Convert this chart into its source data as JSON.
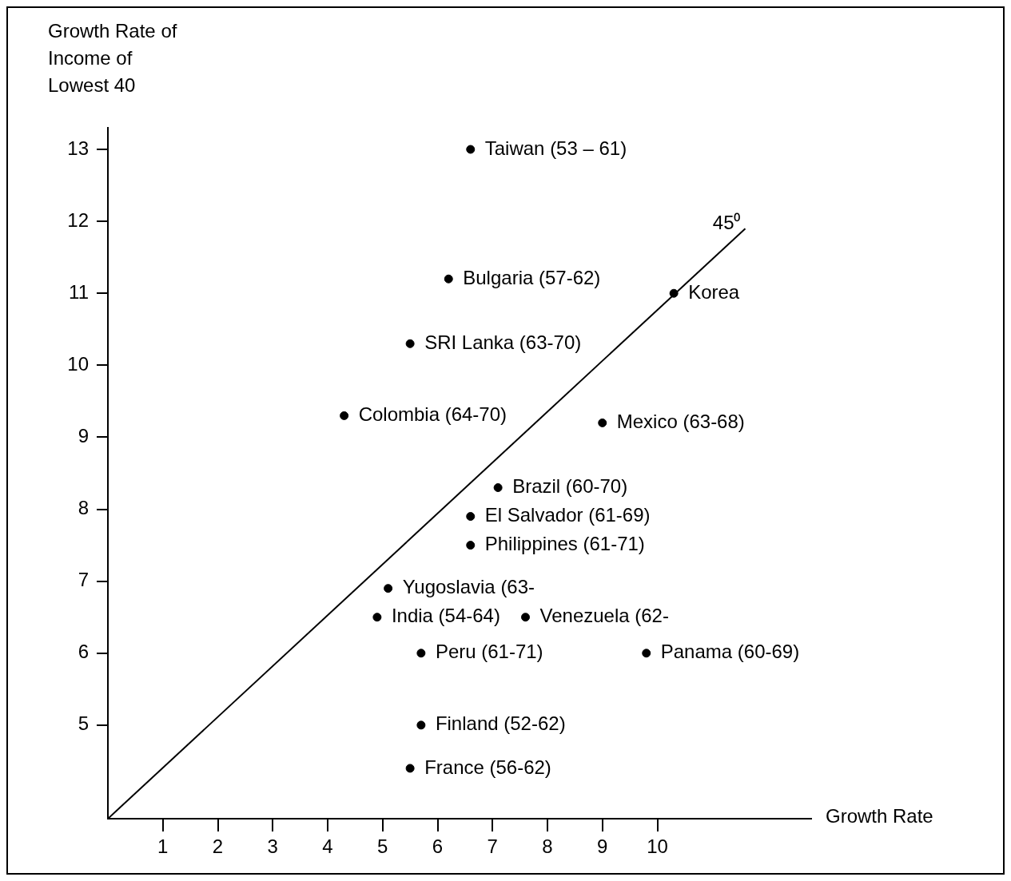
{
  "chart_data": {
    "type": "scatter",
    "ylabel": "Growth Rate of Income of Lowest 40",
    "xlabel": "Growth Rate",
    "xlim": [
      0,
      12.8
    ],
    "xticks": [
      1,
      2,
      3,
      4,
      5,
      6,
      7,
      8,
      9,
      10
    ],
    "ylim": [
      3.7,
      13.3
    ],
    "yticks": [
      5,
      6,
      7,
      8,
      9,
      10,
      11,
      12,
      13
    ],
    "grid": false,
    "legend": false,
    "marker": "circle",
    "series": [
      {
        "color": "#000000",
        "x": [
          6.6,
          6.2,
          10.3,
          5.5,
          4.3,
          9.0,
          7.1,
          6.6,
          6.6,
          5.1,
          4.9,
          7.6,
          5.7,
          9.8,
          5.7,
          5.5
        ],
        "values": [
          13.0,
          11.2,
          11.0,
          10.3,
          9.3,
          9.2,
          8.3,
          7.9,
          7.5,
          6.9,
          6.5,
          6.5,
          6.0,
          6.0,
          5.0,
          4.4
        ]
      },
      {
        "type": "line",
        "color": "#000000",
        "marker": "none",
        "x": [
          0,
          11.6
        ],
        "values": [
          3.7,
          11.9
        ]
      }
    ],
    "annotations": [
      {
        "text": "Taiwan (53 – 61)",
        "x": 6.6,
        "y": 13.0
      },
      {
        "text": "Bulgaria (57-62)",
        "x": 6.2,
        "y": 11.2
      },
      {
        "text": "Korea",
        "x": 10.3,
        "y": 11.0
      },
      {
        "text": "SRI Lanka (63-70)",
        "x": 5.5,
        "y": 10.3
      },
      {
        "text": "Colombia (64-70)",
        "x": 4.3,
        "y": 9.3
      },
      {
        "text": "Mexico (63-68)",
        "x": 9.0,
        "y": 9.2
      },
      {
        "text": "Brazil (60-70)",
        "x": 7.1,
        "y": 8.3
      },
      {
        "text": "El Salvador (61-69)",
        "x": 6.6,
        "y": 7.9
      },
      {
        "text": "Philippines (61-71)",
        "x": 6.6,
        "y": 7.5
      },
      {
        "text": "Yugoslavia (63-",
        "x": 5.1,
        "y": 6.9
      },
      {
        "text": "India (54-64)",
        "x": 4.9,
        "y": 6.5
      },
      {
        "text": "Venezuela (62-",
        "x": 7.6,
        "y": 6.5
      },
      {
        "text": "Peru (61-71)",
        "x": 5.7,
        "y": 6.0
      },
      {
        "text": "Panama (60-69)",
        "x": 9.8,
        "y": 6.0
      },
      {
        "text": "Finland (52-62)",
        "x": 5.7,
        "y": 5.0
      },
      {
        "text": "France (56-62)",
        "x": 5.5,
        "y": 4.4
      },
      {
        "text": "45⁰",
        "x": 11.6,
        "y": 11.9
      }
    ]
  }
}
